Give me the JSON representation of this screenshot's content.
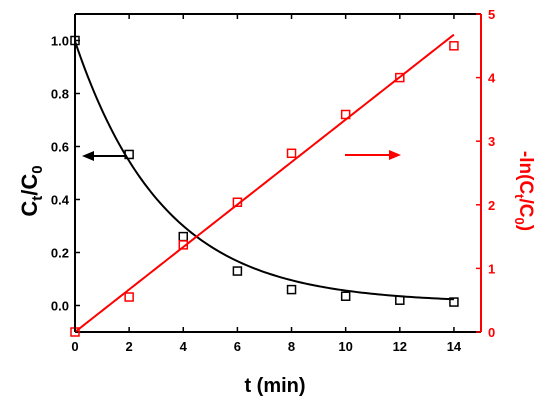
{
  "chart_data": {
    "type": "scatter",
    "xlabel": "t (min)",
    "x_ticks": [
      0,
      2,
      4,
      6,
      8,
      10,
      12,
      14
    ],
    "xlim": [
      0,
      15
    ],
    "y_left": {
      "label": {
        "base": "C",
        "sub1": "t",
        "mid": "/C",
        "sub2": "0"
      },
      "ylim": [
        -0.1,
        1.1
      ],
      "ticks": [
        0.0,
        0.2,
        0.4,
        0.6,
        0.8,
        1.0
      ],
      "tick_labels": [
        "0.0",
        "0.2",
        "0.4",
        "0.6",
        "0.8",
        "1.0"
      ],
      "color": "#000000"
    },
    "y_right": {
      "label": {
        "prefix": "-ln(C",
        "sub1": "t",
        "mid": "/C",
        "sub2": "0",
        "suffix": ")"
      },
      "ylim": [
        0,
        5
      ],
      "ticks": [
        0,
        1,
        2,
        3,
        4,
        5
      ],
      "tick_labels": [
        "0",
        "1",
        "2",
        "3",
        "4",
        "5"
      ],
      "color": "#ff0000"
    },
    "series": [
      {
        "axis": "left",
        "marker": "open-square",
        "color": "#000000",
        "x": [
          0,
          2,
          4,
          6,
          8,
          10,
          12,
          14
        ],
        "y": [
          1.0,
          0.57,
          0.26,
          0.13,
          0.06,
          0.035,
          0.02,
          0.013
        ]
      },
      {
        "axis": "right",
        "marker": "open-square",
        "color": "#ff0000",
        "x": [
          0,
          2,
          4,
          6,
          8,
          10,
          12,
          14
        ],
        "y": [
          0,
          0.55,
          1.37,
          2.04,
          2.81,
          3.42,
          4.0,
          4.5
        ]
      }
    ],
    "fits": [
      {
        "axis": "left",
        "kind": "exponential-decay",
        "color": "#000000",
        "params": {
          "a": 0.987,
          "k": 0.306,
          "c": 0.01
        },
        "x_range": [
          0,
          14
        ]
      },
      {
        "axis": "right",
        "kind": "linear",
        "color": "#ff0000",
        "params": {
          "slope": 0.334,
          "intercept": 0.0
        },
        "x_range": [
          0,
          14
        ]
      }
    ],
    "arrows": [
      {
        "direction": "left",
        "color": "#000000",
        "points_to": "left axis"
      },
      {
        "direction": "right",
        "color": "#ff0000",
        "points_to": "right axis"
      }
    ],
    "grid": false,
    "legend": "none"
  }
}
